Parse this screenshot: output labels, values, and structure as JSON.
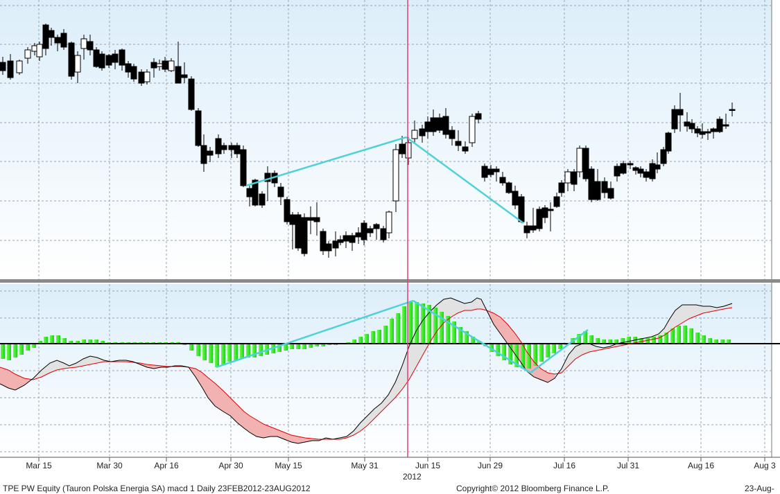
{
  "chart_data": {
    "type": "candlestick+macd",
    "ticker_line": "TPE PW Equity (Tauron Polska Energia SA) macd 1  Daily 23FEB2012-23AUG2012",
    "copyright": "Copyright© 2012 Bloomberg Finance L.P.",
    "date_stamp": "23-Aug-",
    "year_label": "2012",
    "x_ticks": [
      "Mar 15",
      "Mar 30",
      "Apr 16",
      "Apr 30",
      "May 15",
      "May 31",
      "Jun 15",
      "Jun 29",
      "Jul 16",
      "Jul 31",
      "Aug 16",
      "Aug 3"
    ],
    "grid": true,
    "colors": {
      "bull_candle": "#ffffff",
      "bear_candle": "#000000",
      "trendline": "#4fd1d9",
      "cursor_line": "#e0407a",
      "macd_line": "#000000",
      "signal_line": "#ff0000",
      "fill_above": "#f0b4b4",
      "fill_below": "#e0e0e0",
      "histogram": "#33ee33"
    }
  }
}
